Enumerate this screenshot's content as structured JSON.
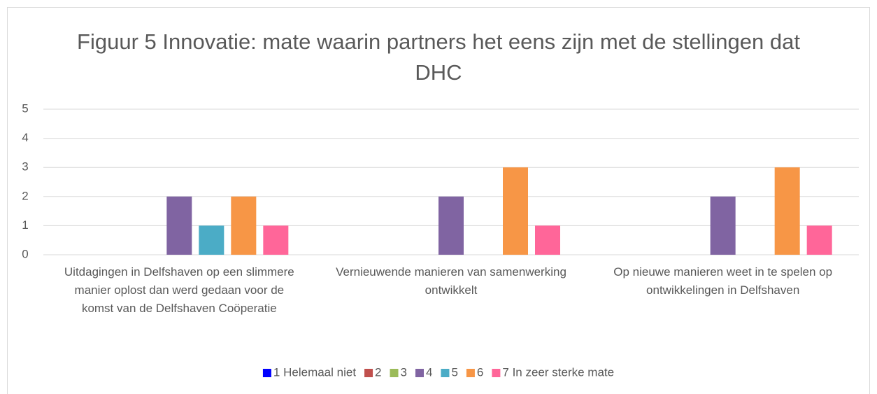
{
  "chart_data": {
    "type": "bar",
    "title": "Figuur 5 Innovatie: mate waarin partners het eens zijn met de stellingen dat DHC",
    "categories": [
      "Uitdagingen in Delfshaven op een slimmere manier oplost dan werd gedaan voor de komst van de Delfshaven Coöperatie",
      "Vernieuwende manieren van samenwerking ontwikkelt",
      "Op nieuwe manieren weet in te spelen op ontwikkelingen in Delfshaven"
    ],
    "series": [
      {
        "name": "1 Helemaal niet",
        "color": "#0000ff",
        "values": [
          0,
          0,
          0
        ]
      },
      {
        "name": "2",
        "color": "#c0504d",
        "values": [
          0,
          0,
          0
        ]
      },
      {
        "name": "3",
        "color": "#9bbb59",
        "values": [
          0,
          0,
          0
        ]
      },
      {
        "name": "4",
        "color": "#8064a2",
        "values": [
          2,
          2,
          2
        ]
      },
      {
        "name": "5",
        "color": "#4bacc6",
        "values": [
          1,
          0,
          0
        ]
      },
      {
        "name": "6",
        "color": "#f79646",
        "values": [
          2,
          3,
          3
        ]
      },
      {
        "name": "7 In zeer sterke mate",
        "color": "#ff6699",
        "values": [
          1,
          1,
          1
        ]
      }
    ],
    "ylim": [
      0,
      5
    ],
    "yticks": [
      0,
      1,
      2,
      3,
      4,
      5
    ],
    "grid": true,
    "legend": "bottom"
  }
}
